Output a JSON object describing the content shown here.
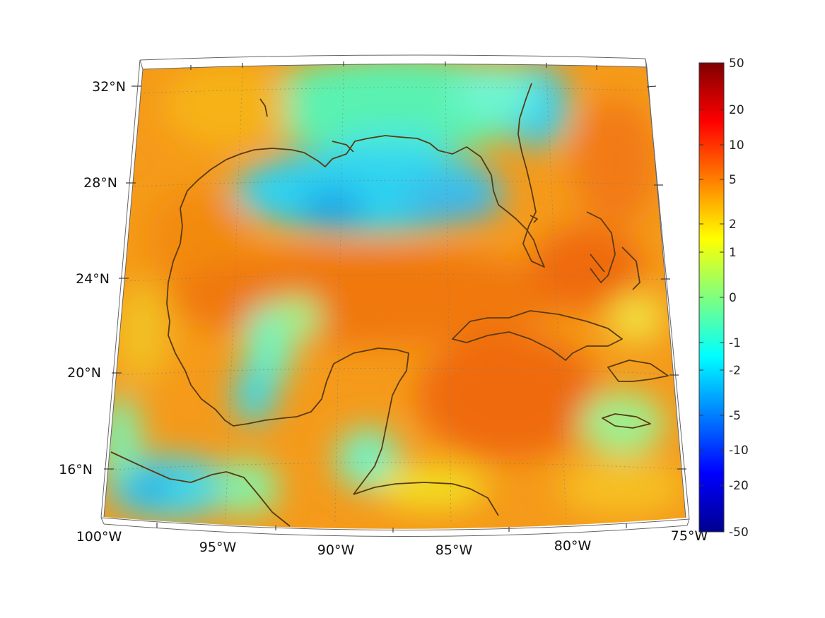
{
  "map": {
    "projection": "conic",
    "extent": {
      "lon": [
        -100,
        -75
      ],
      "lat": [
        14,
        33
      ]
    },
    "grid": "dotted",
    "coastline_color": "#5a3b12",
    "lat_labels": [
      "32°N",
      "28°N",
      "24°N",
      "20°N",
      "16°N"
    ],
    "lon_labels": [
      "100°W",
      "95°W",
      "90°W",
      "85°W",
      "80°W",
      "75°W"
    ]
  },
  "colorbar": {
    "colormap": "jet",
    "tick_labels": [
      "50",
      "20",
      "10",
      "5",
      "2",
      "1",
      "0",
      "-1",
      "-2",
      "-5",
      "-10",
      "-20",
      "-50"
    ],
    "min_color": "#00008f",
    "max_color": "#800000"
  }
}
